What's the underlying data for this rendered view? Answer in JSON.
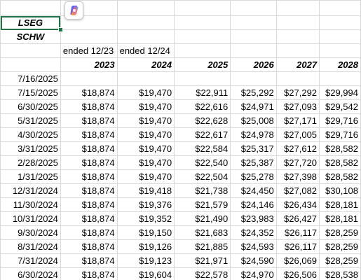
{
  "labels": {
    "r1": "LSEG",
    "r2": "SCHW"
  },
  "ended": [
    "ended 12/23",
    "ended 12/24"
  ],
  "years": [
    "2023",
    "2024",
    "2025",
    "2026",
    "2027",
    "2028"
  ],
  "header_date": "7/16/2025",
  "rows": [
    [
      "7/15/2025",
      "$18,874",
      "$19,470",
      "$22,911",
      "$25,292",
      "$27,292",
      "$29,994"
    ],
    [
      "6/30/2025",
      "$18,874",
      "$19,470",
      "$22,616",
      "$24,971",
      "$27,093",
      "$29,542"
    ],
    [
      "5/31/2025",
      "$18,874",
      "$19,470",
      "$22,628",
      "$25,008",
      "$27,171",
      "$29,716"
    ],
    [
      "4/30/2025",
      "$18,874",
      "$19,470",
      "$22,617",
      "$24,978",
      "$27,005",
      "$29,716"
    ],
    [
      "3/31/2025",
      "$18,874",
      "$19,470",
      "$22,584",
      "$25,317",
      "$27,612",
      "$28,582"
    ],
    [
      "2/28/2025",
      "$18,874",
      "$19,470",
      "$22,540",
      "$25,387",
      "$27,720",
      "$28,582"
    ],
    [
      "1/31/2025",
      "$18,874",
      "$19,470",
      "$22,504",
      "$25,278",
      "$27,398",
      "$28,582"
    ],
    [
      "12/31/2024",
      "$18,874",
      "$19,418",
      "$21,738",
      "$24,450",
      "$27,082",
      "$30,108"
    ],
    [
      "11/30/2024",
      "$18,874",
      "$19,376",
      "$21,579",
      "$24,146",
      "$26,434",
      "$28,181"
    ],
    [
      "10/31/2024",
      "$18,874",
      "$19,352",
      "$21,490",
      "$23,983",
      "$26,427",
      "$28,181"
    ],
    [
      "9/30/2024",
      "$18,874",
      "$19,150",
      "$21,683",
      "$24,352",
      "$26,117",
      "$28,259"
    ],
    [
      "8/31/2024",
      "$18,874",
      "$19,126",
      "$21,885",
      "$24,593",
      "$26,117",
      "$28,259"
    ],
    [
      "7/31/2024",
      "$18,874",
      "$19,123",
      "$21,971",
      "$24,590",
      "$26,069",
      "$28,259"
    ],
    [
      "6/30/2024",
      "$18,874",
      "$19,604",
      "$22,578",
      "$24,970",
      "$26,506",
      "$28,538"
    ]
  ],
  "colors": {
    "selection": "#217346",
    "gridline": "#d9d9d9"
  },
  "icons": {
    "copilot": "copilot-icon"
  }
}
